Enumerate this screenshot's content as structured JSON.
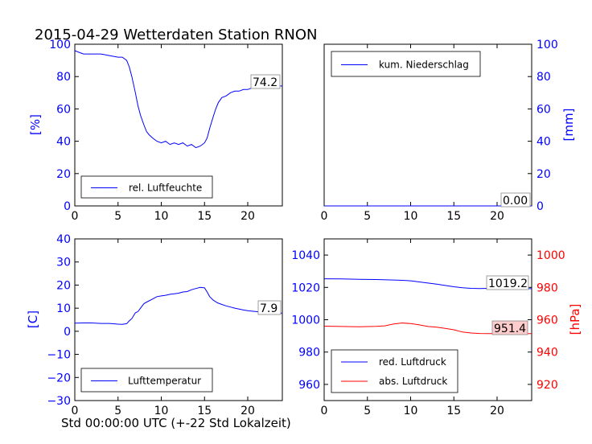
{
  "figure": {
    "title": "2015-04-29 Wetterdaten Station RNON",
    "xlabel": "Std 00:00:00 UTC (+-22 Std Lokalzeit)"
  },
  "colors": {
    "blue": "#0000ff",
    "red": "#ff0000",
    "black": "#000000",
    "label_bg": "#ffcccc"
  },
  "chart_data": [
    {
      "type": "line",
      "id": "humidity",
      "ylabel": "[%]",
      "axis_side": "left",
      "xlim": [
        0,
        24
      ],
      "ylim": [
        0,
        100
      ],
      "xticks": [
        "0",
        "5",
        "10",
        "15",
        "20"
      ],
      "yticks": [
        "0",
        "20",
        "40",
        "60",
        "80",
        "100"
      ],
      "legend_position": "lower-left",
      "grid": false,
      "series": [
        {
          "name": "rel. Luftfeuchte",
          "color": "#0000ff",
          "x": [
            0,
            0.5,
            1,
            2,
            3,
            4,
            5,
            5.5,
            6,
            6.3,
            6.6,
            7,
            7.3,
            7.6,
            8,
            8.3,
            8.6,
            9,
            9.5,
            10,
            10.5,
            11,
            11.5,
            12,
            12.5,
            13,
            13.5,
            14,
            14.5,
            15,
            15.3,
            15.6,
            16,
            16.3,
            16.6,
            17,
            17.5,
            18,
            18.5,
            19,
            19.5,
            20,
            20.5,
            21,
            21.5,
            22,
            22.5,
            23,
            23.5,
            24
          ],
          "y": [
            96,
            95,
            94,
            94,
            94,
            93,
            92,
            92,
            90,
            86,
            80,
            70,
            62,
            56,
            50,
            46,
            44,
            42,
            40,
            39,
            40,
            38,
            39,
            38,
            39,
            37,
            38,
            36,
            37,
            39,
            42,
            48,
            55,
            60,
            64,
            67,
            68,
            70,
            71,
            71,
            72,
            72,
            73,
            73,
            74,
            74,
            74,
            74,
            74.2,
            74.2
          ]
        }
      ],
      "last_value_label": "74.2"
    },
    {
      "type": "line",
      "id": "precipitation",
      "ylabel": "[mm]",
      "axis_side": "right",
      "xlim": [
        0,
        24
      ],
      "ylim": [
        0,
        100
      ],
      "xticks": [
        "0",
        "5",
        "10",
        "15",
        "20"
      ],
      "yticks": [
        "0",
        "20",
        "40",
        "60",
        "80",
        "100"
      ],
      "legend_position": "upper-left",
      "grid": false,
      "series": [
        {
          "name": "kum. Niederschlag",
          "color": "#0000ff",
          "x": [
            0,
            24
          ],
          "y": [
            0,
            0
          ]
        }
      ],
      "last_value_label": "0.00"
    },
    {
      "type": "line",
      "id": "temperature",
      "ylabel": "[C]",
      "axis_side": "left",
      "xlim": [
        0,
        24
      ],
      "ylim": [
        -30,
        40
      ],
      "xticks": [
        "0",
        "5",
        "10",
        "15",
        "20"
      ],
      "yticks": [
        "−30",
        "−20",
        "−10",
        "0",
        "10",
        "20",
        "30",
        "40"
      ],
      "legend_position": "lower-left",
      "grid": false,
      "series": [
        {
          "name": "Lufttemperatur",
          "color": "#0000ff",
          "x": [
            0,
            1,
            2,
            3,
            4,
            5,
            5.5,
            6,
            6.3,
            6.6,
            7,
            7.3,
            7.6,
            8,
            8.5,
            9,
            9.5,
            10,
            10.5,
            11,
            11.5,
            12,
            12.5,
            13,
            13.5,
            14,
            14.5,
            15,
            15.3,
            15.6,
            16,
            16.5,
            17,
            17.5,
            18,
            18.5,
            19,
            19.5,
            20,
            20.5,
            21,
            21.5,
            22,
            22.5,
            23,
            23.5,
            24
          ],
          "y": [
            3.5,
            3.6,
            3.6,
            3.4,
            3.4,
            3.1,
            3.0,
            3.3,
            4.5,
            5.5,
            8.0,
            8.5,
            10.0,
            12.0,
            13.0,
            14.0,
            15.0,
            15.3,
            15.6,
            16.0,
            16.2,
            16.5,
            17.0,
            17.2,
            18.0,
            18.5,
            19.0,
            18.8,
            17.0,
            15.0,
            13.5,
            12.3,
            11.6,
            11.0,
            10.5,
            10.0,
            9.6,
            9.2,
            8.9,
            8.7,
            8.5,
            8.3,
            8.1,
            8.0,
            7.9,
            7.9,
            7.9
          ]
        }
      ],
      "last_value_label": "7.9"
    },
    {
      "type": "line",
      "id": "pressure",
      "ylabel": "[hPa]",
      "axis_side": "both",
      "xlim": [
        0,
        24
      ],
      "ylim_left": [
        950,
        1050
      ],
      "ylim_right": [
        910,
        1010
      ],
      "xticks": [
        "0",
        "5",
        "10",
        "15",
        "20"
      ],
      "yticks_left": [
        "960",
        "980",
        "1000",
        "1020",
        "1040"
      ],
      "yticks_right": [
        "920",
        "940",
        "960",
        "980",
        "1000"
      ],
      "legend_position": "lower-left",
      "grid": false,
      "series": [
        {
          "name": "red. Luftdruck",
          "axis": "left",
          "color": "#0000ff",
          "x": [
            0,
            2,
            4,
            6,
            8,
            9,
            10,
            11,
            12,
            13,
            14,
            15,
            16,
            17,
            18,
            19,
            20,
            21,
            22,
            23,
            24
          ],
          "y": [
            1025.3,
            1025.2,
            1025.0,
            1024.9,
            1024.6,
            1024.4,
            1024.1,
            1023.4,
            1022.7,
            1022.0,
            1021.2,
            1020.4,
            1019.8,
            1019.4,
            1019.3,
            1019.4,
            1019.3,
            1019.2,
            1019.2,
            1019.2,
            1019.2
          ]
        },
        {
          "name": "abs. Luftdruck",
          "axis": "right",
          "color": "#ff0000",
          "x": [
            0,
            2,
            4,
            6,
            7,
            8,
            9,
            10,
            11,
            12,
            13,
            14,
            15,
            16,
            17,
            18,
            19,
            20,
            21,
            22,
            23,
            24
          ],
          "y": [
            956.0,
            955.8,
            955.6,
            955.9,
            956.2,
            957.3,
            958.0,
            957.6,
            956.8,
            955.8,
            955.4,
            954.7,
            953.8,
            952.4,
            951.8,
            951.5,
            951.4,
            951.4,
            951.4,
            951.4,
            951.4,
            951.4
          ]
        }
      ],
      "last_value_labels": [
        "1019.2",
        "951.4"
      ]
    }
  ]
}
